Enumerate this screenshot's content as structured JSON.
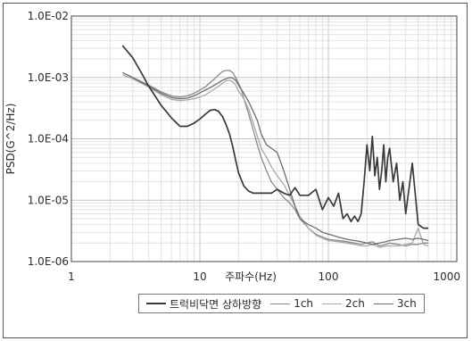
{
  "chart_data": {
    "type": "line",
    "xscale": "log",
    "yscale": "log",
    "xlim": [
      1,
      1000
    ],
    "ylim": [
      1e-06,
      0.01
    ],
    "x_tick_labels": [
      "1",
      "10",
      "100",
      "1000"
    ],
    "y_tick_labels": [
      "1.0E-06",
      "1.0E-05",
      "1.0E-04",
      "1.0E-03",
      "1.0E-02"
    ],
    "xlabel": "주파수(Hz)",
    "ylabel": "PSD(G^2/Hz)",
    "grid": true,
    "legend_position": "bottom",
    "series": [
      {
        "name": "트럭비닥면 상하방향",
        "color": "#3a3a3a",
        "x": [
          2.5,
          3.0,
          3.5,
          4.0,
          5.0,
          6.0,
          7.0,
          8.0,
          9.0,
          10,
          11,
          12,
          13,
          14,
          15,
          16,
          17,
          18,
          19,
          20,
          22,
          24,
          26,
          28,
          30,
          33,
          36,
          40,
          45,
          50,
          55,
          60,
          70,
          80,
          90,
          100,
          110,
          120,
          130,
          140,
          150,
          160,
          170,
          180,
          190,
          200,
          210,
          220,
          230,
          240,
          250,
          260,
          270,
          280,
          290,
          300,
          320,
          340,
          360,
          380,
          400,
          450,
          500,
          550,
          600
        ],
        "y": [
          0.0033,
          0.0021,
          0.0012,
          0.00072,
          0.00035,
          0.00022,
          0.00016,
          0.00016,
          0.00018,
          0.00021,
          0.00025,
          0.00029,
          0.0003,
          0.00028,
          0.00023,
          0.00017,
          0.00012,
          7.5e-05,
          4.5e-05,
          2.8e-05,
          1.7e-05,
          1.4e-05,
          1.3e-05,
          1.3e-05,
          1.3e-05,
          1.3e-05,
          1.3e-05,
          1.5e-05,
          1.3e-05,
          1.2e-05,
          1.6e-05,
          1.2e-05,
          1.2e-05,
          1.5e-05,
          7e-06,
          1.1e-05,
          8e-06,
          1.3e-05,
          5e-06,
          6e-06,
          4.5e-06,
          5.5e-06,
          4.5e-06,
          6e-06,
          2e-05,
          8e-05,
          3e-05,
          0.00011,
          2.5e-05,
          5e-05,
          1.5e-05,
          3e-05,
          8e-05,
          2e-05,
          5e-05,
          7e-05,
          2e-05,
          4e-05,
          1e-05,
          2e-05,
          6e-06,
          4e-05,
          4e-06,
          3.5e-06,
          3.5e-06
        ]
      },
      {
        "name": "1ch",
        "color": "#8a8a8a",
        "x": [
          2.5,
          3.0,
          4.0,
          5.0,
          6.0,
          7.0,
          8.0,
          9.0,
          10,
          11,
          12,
          13,
          14,
          15,
          16,
          17,
          18,
          19,
          20,
          21,
          22,
          24,
          26,
          28,
          30,
          33,
          36,
          40,
          45,
          50,
          55,
          60,
          70,
          80,
          90,
          100,
          120,
          140,
          160,
          180,
          200,
          220,
          250,
          280,
          300,
          350,
          400,
          450,
          500,
          550,
          600
        ],
        "y": [
          0.0012,
          0.001,
          0.00075,
          0.00058,
          0.0005,
          0.00048,
          0.0005,
          0.00055,
          0.00062,
          0.0007,
          0.00082,
          0.00095,
          0.0011,
          0.00125,
          0.0013,
          0.0013,
          0.0012,
          0.001,
          0.0008,
          0.00065,
          0.00045,
          0.00025,
          0.00014,
          8e-05,
          5e-05,
          3e-05,
          2e-05,
          1.5e-05,
          1.1e-05,
          9e-06,
          7e-06,
          5e-06,
          3.5e-06,
          2.8e-06,
          2.5e-06,
          2.3e-06,
          2.2e-06,
          2.1e-06,
          2e-06,
          1.9e-06,
          2e-06,
          2.1e-06,
          1.8e-06,
          1.9e-06,
          2e-06,
          1.9e-06,
          1.8e-06,
          1.9e-06,
          1.9e-06,
          2e-06,
          2e-06
        ]
      },
      {
        "name": "2ch",
        "color": "#a8a8a8",
        "x": [
          2.5,
          3.0,
          4.0,
          5.0,
          6.0,
          7.0,
          8.0,
          9.0,
          10,
          11,
          12,
          13,
          14,
          15,
          16,
          17,
          18,
          19,
          20,
          22,
          24,
          26,
          28,
          30,
          33,
          36,
          40,
          45,
          50,
          55,
          60,
          70,
          80,
          90,
          100,
          120,
          140,
          160,
          180,
          200,
          220,
          250,
          280,
          300,
          350,
          400,
          450,
          500,
          550,
          600
        ],
        "y": [
          0.0011,
          0.00095,
          0.0007,
          0.00052,
          0.00044,
          0.00042,
          0.00043,
          0.00045,
          0.00048,
          0.00052,
          0.00058,
          0.00065,
          0.00072,
          0.0008,
          0.00088,
          0.0009,
          0.00085,
          0.00075,
          0.0006,
          0.00045,
          0.0003,
          0.00018,
          0.00011,
          7e-05,
          5e-05,
          3.5e-05,
          2.5e-05,
          1.8e-05,
          1.2e-05,
          8e-06,
          5.5e-06,
          3.5e-06,
          2.7e-06,
          2.4e-06,
          2.2e-06,
          2.1e-06,
          2e-06,
          1.9e-06,
          1.8e-06,
          1.8e-06,
          1.9e-06,
          1.7e-06,
          1.8e-06,
          1.8e-06,
          1.8e-06,
          1.9e-06,
          2e-06,
          3.5e-06,
          1.9e-06,
          1.8e-06
        ]
      },
      {
        "name": "3ch",
        "color": "#6e6e6e",
        "x": [
          2.5,
          3.0,
          4.0,
          5.0,
          6.0,
          7.0,
          8.0,
          9.0,
          10,
          11,
          12,
          13,
          14,
          15,
          16,
          17,
          18,
          19,
          20,
          22,
          24,
          26,
          28,
          30,
          33,
          36,
          40,
          45,
          50,
          55,
          60,
          70,
          80,
          90,
          100,
          120,
          140,
          160,
          180,
          200,
          220,
          250,
          280,
          300,
          350,
          400,
          450,
          500,
          550,
          600
        ],
        "y": [
          0.0012,
          0.001,
          0.00072,
          0.00055,
          0.00047,
          0.00045,
          0.00046,
          0.0005,
          0.00056,
          0.00062,
          0.00068,
          0.00075,
          0.00082,
          0.0009,
          0.00095,
          0.001,
          0.00098,
          0.0009,
          0.00075,
          0.00055,
          0.0004,
          0.00028,
          0.0002,
          0.00012,
          8e-05,
          7e-05,
          6e-05,
          3e-05,
          1.5e-05,
          8e-06,
          5e-06,
          4e-06,
          3.5e-06,
          3e-06,
          2.8e-06,
          2.5e-06,
          2.3e-06,
          2.2e-06,
          2.1e-06,
          2e-06,
          1.9e-06,
          2e-06,
          2.1e-06,
          2.2e-06,
          2.3e-06,
          2.4e-06,
          2.3e-06,
          2.4e-06,
          2.3e-06,
          2.2e-06
        ]
      }
    ]
  }
}
